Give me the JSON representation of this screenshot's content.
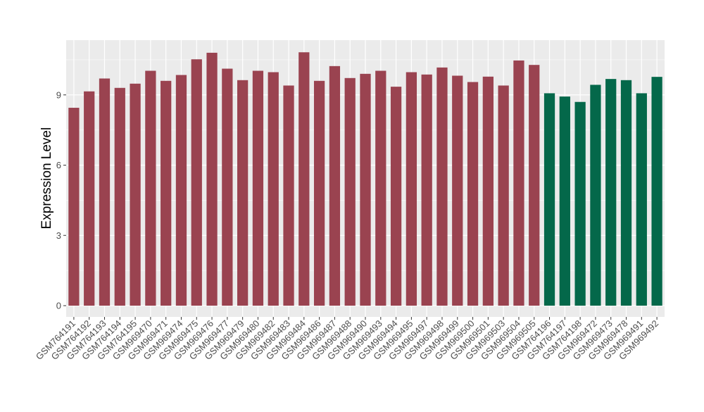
{
  "chart_data": {
    "type": "bar",
    "title": "",
    "xlabel": "",
    "ylabel": "Expression Level",
    "ylim": [
      0,
      11.3
    ],
    "yticks": [
      0,
      3,
      6,
      9
    ],
    "grid": true,
    "legend": "none",
    "colors": {
      "group_a": "#9a4350",
      "group_b": "#04684a",
      "panel_bg": "#ebebeb",
      "grid": "#ffffff"
    },
    "categories": [
      "GSM764191",
      "GSM764192",
      "GSM764193",
      "GSM764194",
      "GSM764195",
      "GSM969470",
      "GSM969471",
      "GSM969474",
      "GSM969475",
      "GSM969476",
      "GSM969477",
      "GSM969479",
      "GSM969480",
      "GSM969482",
      "GSM969483",
      "GSM969484",
      "GSM969486",
      "GSM969487",
      "GSM969488",
      "GSM969490",
      "GSM969493",
      "GSM969494",
      "GSM969495",
      "GSM969497",
      "GSM969498",
      "GSM969499",
      "GSM969500",
      "GSM969501",
      "GSM969503",
      "GSM969504",
      "GSM969505",
      "GSM764196",
      "GSM764197",
      "GSM764198",
      "GSM969472",
      "GSM969473",
      "GSM969478",
      "GSM969491",
      "GSM969492"
    ],
    "values": [
      8.45,
      9.15,
      9.7,
      9.3,
      9.48,
      10.03,
      9.6,
      9.85,
      10.52,
      10.8,
      10.12,
      9.63,
      10.03,
      9.97,
      9.4,
      10.82,
      9.6,
      10.23,
      9.72,
      9.9,
      10.03,
      9.35,
      9.97,
      9.87,
      10.17,
      9.82,
      9.55,
      9.78,
      9.4,
      10.47,
      10.28,
      9.07,
      8.93,
      8.7,
      9.43,
      9.68,
      9.63,
      9.07,
      9.77
    ],
    "groups": [
      "a",
      "a",
      "a",
      "a",
      "a",
      "a",
      "a",
      "a",
      "a",
      "a",
      "a",
      "a",
      "a",
      "a",
      "a",
      "a",
      "a",
      "a",
      "a",
      "a",
      "a",
      "a",
      "a",
      "a",
      "a",
      "a",
      "a",
      "a",
      "a",
      "a",
      "a",
      "b",
      "b",
      "b",
      "b",
      "b",
      "b",
      "b",
      "b"
    ]
  }
}
